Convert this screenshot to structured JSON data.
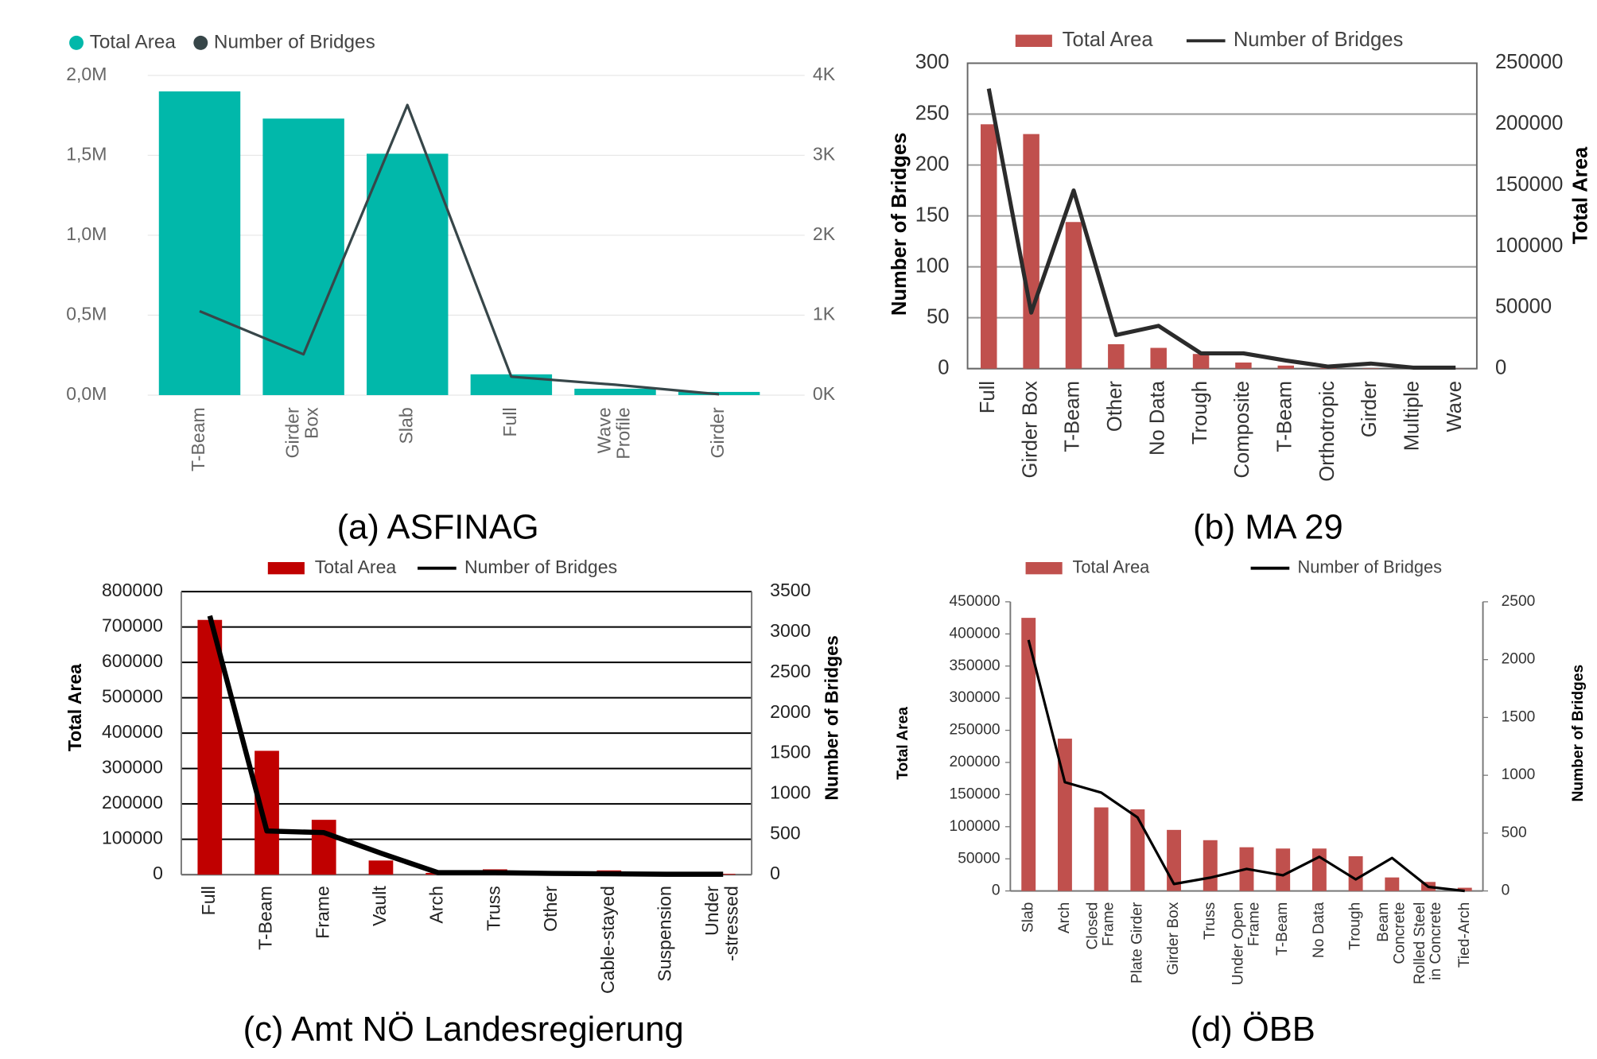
{
  "chart_data": [
    {
      "type": "bar",
      "title": "(a) ASFINAG",
      "categories": [
        "T-Beam",
        "Girder\nBox",
        "Slab",
        "Full",
        "Wave\nProfile",
        "Girder"
      ],
      "ylim": [
        0,
        2000000
      ],
      "yticks": [
        {
          "value": 0,
          "label": "0,0M"
        },
        {
          "value": 500000,
          "label": "0,5M"
        },
        {
          "value": 1000000,
          "label": "1,0M"
        },
        {
          "value": 1500000,
          "label": "1,5M"
        },
        {
          "value": 2000000,
          "label": "2,0M"
        }
      ],
      "y2lim": [
        0,
        4000
      ],
      "y2ticks": [
        {
          "value": 0,
          "label": "0K"
        },
        {
          "value": 1000,
          "label": "1K"
        },
        {
          "value": 2000,
          "label": "2K"
        },
        {
          "value": 3000,
          "label": "3K"
        },
        {
          "value": 4000,
          "label": "4K"
        }
      ],
      "grid": true,
      "legend_marker": "circle",
      "series": [
        {
          "name": "Total Area",
          "type": "bar",
          "color": "#01b8aa",
          "values": [
            1900000,
            1730000,
            1510000,
            130000,
            40000,
            20000
          ]
        },
        {
          "name": "Number of Bridges",
          "type": "line",
          "axis": "y2",
          "color": "#374649",
          "values": [
            1050,
            510,
            3630,
            230,
            130,
            10
          ]
        }
      ]
    },
    {
      "type": "bar",
      "title": "(b) MA 29",
      "categories": [
        "Full",
        "Girder Box",
        "T-Beam",
        "Other",
        "No Data",
        "Trough",
        "Composite",
        "T-Beam",
        "Orthotropic",
        "Girder",
        "Multiple",
        "Wave"
      ],
      "ylabel": "Number of Bridges",
      "y2label": "Total Area",
      "ylim": [
        0,
        300
      ],
      "yticks": [
        0,
        50,
        100,
        150,
        200,
        250,
        300
      ],
      "y2lim": [
        0,
        250000
      ],
      "y2ticks": [
        0,
        50000,
        100000,
        150000,
        200000,
        250000
      ],
      "grid": true,
      "series": [
        {
          "name": "Total Area",
          "type": "bar",
          "axis": "y2",
          "color": "#c0504d",
          "values": [
            200000,
            192000,
            120000,
            20000,
            17000,
            12000,
            5000,
            2500,
            500,
            300,
            200,
            100
          ]
        },
        {
          "name": "Number of Bridges",
          "type": "line",
          "color": "#2b2b2b",
          "values": [
            275,
            55,
            175,
            33,
            42,
            15,
            15,
            8,
            2,
            5,
            1,
            1
          ]
        }
      ]
    },
    {
      "type": "bar",
      "title": "(c) Amt NÖ Landesregierung",
      "categories": [
        "Full",
        "T-Beam",
        "Frame",
        "Vault",
        "Arch",
        "Truss",
        "Other",
        "Cable-stayed",
        "Suspension",
        "Under\n-stressed"
      ],
      "ylabel": "Total Area",
      "y2label": "Number of Bridges",
      "ylim": [
        0,
        800000
      ],
      "yticks": [
        0,
        100000,
        200000,
        300000,
        400000,
        500000,
        600000,
        700000,
        800000
      ],
      "y2lim": [
        0,
        3500
      ],
      "y2ticks": [
        0,
        500,
        1000,
        1500,
        2000,
        2500,
        3000,
        3500
      ],
      "grid": true,
      "series": [
        {
          "name": "Total Area",
          "type": "bar",
          "color": "#c00000",
          "values": [
            720000,
            350000,
            155000,
            40000,
            5000,
            15000,
            3000,
            12000,
            1000,
            2000
          ]
        },
        {
          "name": "Number of Bridges",
          "type": "line",
          "axis": "y2",
          "color": "#000000",
          "values": [
            3200,
            540,
            520,
            265,
            25,
            25,
            15,
            10,
            5,
            5
          ]
        }
      ]
    },
    {
      "type": "bar",
      "title": "(d) ÖBB",
      "categories": [
        "Slab",
        "Arch",
        "Closed\nFrame",
        "Plate Girder",
        "Girder Box",
        "Truss",
        "Under Open\nFrame",
        "T-Beam",
        "No Data",
        "Trough",
        "Beam\nConcrete",
        "Rolled Steel\nin Concrete",
        "Tied-Arch"
      ],
      "ylabel": "Total Area",
      "y2label": "Number of Bridges",
      "ylim": [
        0,
        450000
      ],
      "yticks": [
        0,
        50000,
        100000,
        150000,
        200000,
        250000,
        300000,
        350000,
        400000,
        450000
      ],
      "y2lim": [
        0,
        2500
      ],
      "y2ticks": [
        0,
        500,
        1000,
        1500,
        2000,
        2500
      ],
      "grid": false,
      "series": [
        {
          "name": "Total Area",
          "type": "bar",
          "color": "#c0504d",
          "values": [
            425000,
            237000,
            130000,
            127000,
            95000,
            79000,
            68000,
            66000,
            66000,
            54000,
            21000,
            14000,
            5000
          ]
        },
        {
          "name": "Number of Bridges",
          "type": "line",
          "axis": "y2",
          "color": "#000000",
          "values": [
            2170,
            940,
            850,
            635,
            60,
            115,
            190,
            135,
            295,
            100,
            285,
            35,
            0
          ]
        }
      ]
    }
  ]
}
